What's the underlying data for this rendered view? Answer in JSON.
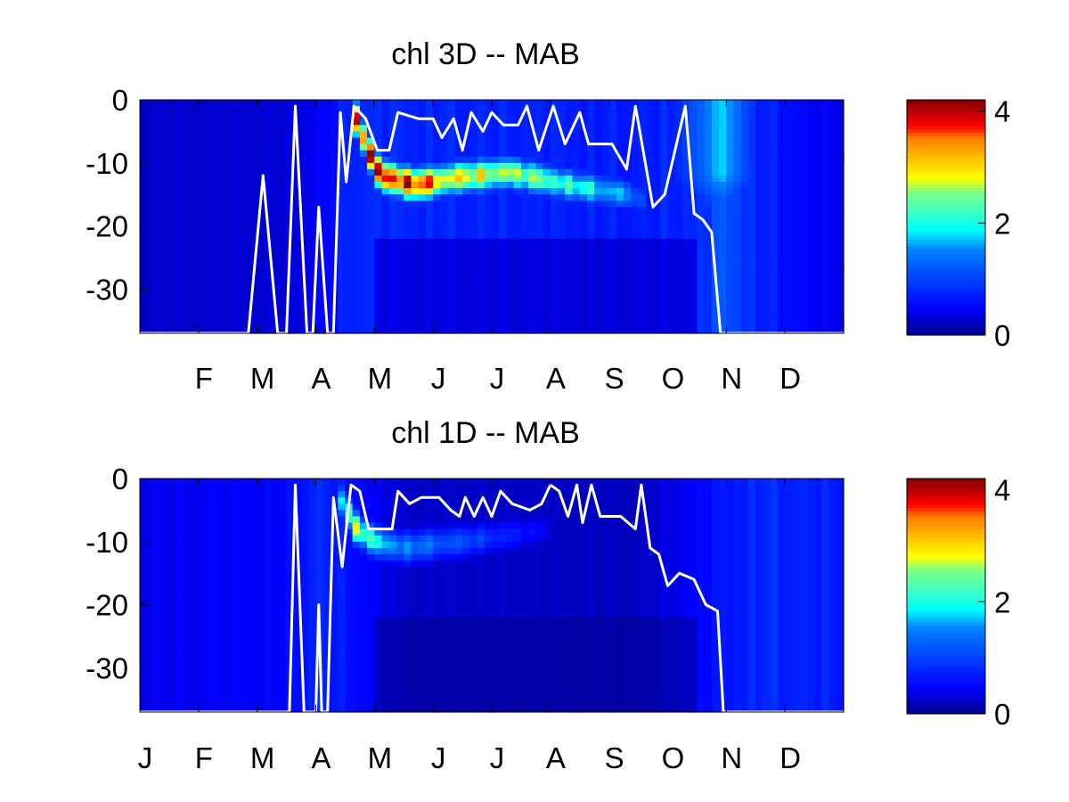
{
  "colormap": "jet",
  "colors": {
    "background": "#ffffff",
    "frame": "#000000",
    "mld_line": "#ffffff",
    "colormap_stops": [
      "#00008f",
      "#0000ff",
      "#0080ff",
      "#00ffff",
      "#80ff80",
      "#ffff00",
      "#ff8000",
      "#ff0000",
      "#800000"
    ]
  },
  "chart_data": [
    {
      "type": "heatmap",
      "title": "chl 3D   -- MAB",
      "xlabel": "",
      "ylabel": "",
      "x_unit_months": [
        1,
        13
      ],
      "x_tick_labels": [
        {
          "label": "F",
          "month": 2
        },
        {
          "label": "M",
          "month": 3
        },
        {
          "label": "A",
          "month": 4
        },
        {
          "label": "M",
          "month": 5
        },
        {
          "label": "J",
          "month": 6
        },
        {
          "label": "J",
          "month": 7
        },
        {
          "label": "A",
          "month": 8
        },
        {
          "label": "S",
          "month": 9
        },
        {
          "label": "O",
          "month": 10
        },
        {
          "label": "N",
          "month": 11
        },
        {
          "label": "D",
          "month": 12
        }
      ],
      "ylim": [
        -37,
        0
      ],
      "y_ticks": [
        0,
        -10,
        -20,
        -30
      ],
      "clim": [
        0,
        4.2
      ],
      "colorbar_ticks": [
        0,
        2,
        4
      ],
      "grid": false,
      "features": {
        "background_chl": [
          {
            "month": 1.0,
            "value": 0.25
          },
          {
            "month": 3.5,
            "value": 0.3
          },
          {
            "month": 4.2,
            "value": 0.5
          },
          {
            "month": 4.6,
            "value": 0.8
          },
          {
            "month": 9.5,
            "value": 0.7
          },
          {
            "month": 10.5,
            "value": 0.8
          },
          {
            "month": 11.0,
            "value": 1.2
          },
          {
            "month": 11.5,
            "value": 0.8
          },
          {
            "month": 12.3,
            "value": 0.5
          },
          {
            "month": 13.0,
            "value": 0.4
          }
        ],
        "subsurface_max": [
          {
            "month": 4.6,
            "depth": -1,
            "value": 3.8
          },
          {
            "month": 4.85,
            "depth": -7,
            "value": 4.0
          },
          {
            "month": 5.1,
            "depth": -12,
            "value": 4.1
          },
          {
            "month": 5.7,
            "depth": -13.5,
            "value": 3.8
          },
          {
            "month": 6.3,
            "depth": -12.5,
            "value": 3.0
          },
          {
            "month": 7.3,
            "depth": -11.5,
            "value": 2.7
          },
          {
            "month": 8.3,
            "depth": -13.5,
            "value": 2.2
          },
          {
            "month": 9.3,
            "depth": -15,
            "value": 1.6
          },
          {
            "month": 9.6,
            "depth": -16,
            "value": 0.9
          }
        ],
        "autumn_column": [
          {
            "month": 10.0,
            "value": 0.6
          },
          {
            "month": 10.6,
            "value": 1.3
          },
          {
            "month": 10.9,
            "value": 1.8
          },
          {
            "month": 11.1,
            "value": 1.5
          },
          {
            "month": 11.5,
            "value": 0.7
          }
        ]
      },
      "mixed_layer_depth": [
        {
          "month": 1.0,
          "depth": -37
        },
        {
          "month": 2.85,
          "depth": -37
        },
        {
          "month": 3.1,
          "depth": -12
        },
        {
          "month": 3.35,
          "depth": -37
        },
        {
          "month": 3.5,
          "depth": -37
        },
        {
          "month": 3.65,
          "depth": -1
        },
        {
          "month": 3.85,
          "depth": -37
        },
        {
          "month": 3.95,
          "depth": -37
        },
        {
          "month": 4.05,
          "depth": -17
        },
        {
          "month": 4.2,
          "depth": -37
        },
        {
          "month": 4.3,
          "depth": -37
        },
        {
          "month": 4.42,
          "depth": -2
        },
        {
          "month": 4.52,
          "depth": -13
        },
        {
          "month": 4.65,
          "depth": -1
        },
        {
          "month": 4.85,
          "depth": -3
        },
        {
          "month": 5.05,
          "depth": -8
        },
        {
          "month": 5.25,
          "depth": -8
        },
        {
          "month": 5.4,
          "depth": -2
        },
        {
          "month": 5.75,
          "depth": -3
        },
        {
          "month": 6.0,
          "depth": -3
        },
        {
          "month": 6.15,
          "depth": -6
        },
        {
          "month": 6.35,
          "depth": -3
        },
        {
          "month": 6.5,
          "depth": -8
        },
        {
          "month": 6.65,
          "depth": -2
        },
        {
          "month": 6.85,
          "depth": -5
        },
        {
          "month": 7.0,
          "depth": -2
        },
        {
          "month": 7.2,
          "depth": -4
        },
        {
          "month": 7.45,
          "depth": -4
        },
        {
          "month": 7.6,
          "depth": -1
        },
        {
          "month": 7.8,
          "depth": -8
        },
        {
          "month": 8.05,
          "depth": -1
        },
        {
          "month": 8.25,
          "depth": -7
        },
        {
          "month": 8.5,
          "depth": -2
        },
        {
          "month": 8.65,
          "depth": -7
        },
        {
          "month": 9.05,
          "depth": -7
        },
        {
          "month": 9.3,
          "depth": -11
        },
        {
          "month": 9.45,
          "depth": -1
        },
        {
          "month": 9.75,
          "depth": -17
        },
        {
          "month": 9.95,
          "depth": -15
        },
        {
          "month": 10.3,
          "depth": -1
        },
        {
          "month": 10.45,
          "depth": -18
        },
        {
          "month": 10.6,
          "depth": -19
        },
        {
          "month": 10.75,
          "depth": -21
        },
        {
          "month": 10.9,
          "depth": -37
        },
        {
          "month": 13.0,
          "depth": -37
        }
      ]
    },
    {
      "type": "heatmap",
      "title": "chl 1D   -- MAB",
      "xlabel": "",
      "ylabel": "",
      "x_unit_months": [
        1,
        13
      ],
      "x_tick_labels": [
        {
          "label": "J",
          "month": 1
        },
        {
          "label": "F",
          "month": 2
        },
        {
          "label": "M",
          "month": 3
        },
        {
          "label": "A",
          "month": 4
        },
        {
          "label": "M",
          "month": 5
        },
        {
          "label": "J",
          "month": 6
        },
        {
          "label": "J",
          "month": 7
        },
        {
          "label": "A",
          "month": 8
        },
        {
          "label": "S",
          "month": 9
        },
        {
          "label": "O",
          "month": 10
        },
        {
          "label": "N",
          "month": 11
        },
        {
          "label": "D",
          "month": 12
        }
      ],
      "ylim": [
        -37,
        0
      ],
      "y_ticks": [
        0,
        -10,
        -20,
        -30
      ],
      "clim": [
        0,
        4.2
      ],
      "colorbar_ticks": [
        0,
        2,
        4
      ],
      "grid": false,
      "features": {
        "background_chl": [
          {
            "month": 1.0,
            "value": 0.4
          },
          {
            "month": 3.5,
            "value": 0.5
          },
          {
            "month": 4.0,
            "value": 0.8
          },
          {
            "month": 4.6,
            "value": 0.6
          },
          {
            "month": 5.5,
            "value": 0.25
          },
          {
            "month": 9.5,
            "value": 0.2
          },
          {
            "month": 10.5,
            "value": 0.5
          },
          {
            "month": 11.5,
            "value": 0.8
          },
          {
            "month": 13.0,
            "value": 0.7
          }
        ],
        "subsurface_max": [
          {
            "month": 4.4,
            "depth": -3,
            "value": 1.8
          },
          {
            "month": 4.7,
            "depth": -8,
            "value": 2.8
          },
          {
            "month": 5.0,
            "depth": -10,
            "value": 2.0
          },
          {
            "month": 5.5,
            "depth": -11,
            "value": 1.5
          },
          {
            "month": 6.5,
            "depth": -10,
            "value": 1.1
          },
          {
            "month": 7.3,
            "depth": -9,
            "value": 0.7
          },
          {
            "month": 8.0,
            "depth": -8,
            "value": 0.4
          }
        ],
        "autumn_column": []
      },
      "mixed_layer_depth": [
        {
          "month": 1.0,
          "depth": -37
        },
        {
          "month": 3.55,
          "depth": -37
        },
        {
          "month": 3.65,
          "depth": -1
        },
        {
          "month": 3.8,
          "depth": -37
        },
        {
          "month": 4.0,
          "depth": -37
        },
        {
          "month": 4.05,
          "depth": -20
        },
        {
          "month": 4.1,
          "depth": -37
        },
        {
          "month": 4.2,
          "depth": -37
        },
        {
          "month": 4.3,
          "depth": -3
        },
        {
          "month": 4.45,
          "depth": -14
        },
        {
          "month": 4.6,
          "depth": -1
        },
        {
          "month": 4.75,
          "depth": -2
        },
        {
          "month": 4.9,
          "depth": -8
        },
        {
          "month": 5.3,
          "depth": -8
        },
        {
          "month": 5.4,
          "depth": -2
        },
        {
          "month": 5.6,
          "depth": -4
        },
        {
          "month": 5.8,
          "depth": -3
        },
        {
          "month": 6.1,
          "depth": -3
        },
        {
          "month": 6.3,
          "depth": -5
        },
        {
          "month": 6.45,
          "depth": -6
        },
        {
          "month": 6.55,
          "depth": -3
        },
        {
          "month": 6.7,
          "depth": -6
        },
        {
          "month": 6.85,
          "depth": -3
        },
        {
          "month": 7.0,
          "depth": -6
        },
        {
          "month": 7.15,
          "depth": -2
        },
        {
          "month": 7.35,
          "depth": -4
        },
        {
          "month": 7.65,
          "depth": -5
        },
        {
          "month": 7.85,
          "depth": -4
        },
        {
          "month": 8.0,
          "depth": -1
        },
        {
          "month": 8.15,
          "depth": -2
        },
        {
          "month": 8.3,
          "depth": -6
        },
        {
          "month": 8.45,
          "depth": -1
        },
        {
          "month": 8.55,
          "depth": -7
        },
        {
          "month": 8.7,
          "depth": -1
        },
        {
          "month": 8.85,
          "depth": -6
        },
        {
          "month": 9.2,
          "depth": -6
        },
        {
          "month": 9.45,
          "depth": -8
        },
        {
          "month": 9.55,
          "depth": -1
        },
        {
          "month": 9.7,
          "depth": -11
        },
        {
          "month": 9.85,
          "depth": -12
        },
        {
          "month": 10.0,
          "depth": -17
        },
        {
          "month": 10.2,
          "depth": -15
        },
        {
          "month": 10.45,
          "depth": -16
        },
        {
          "month": 10.65,
          "depth": -20
        },
        {
          "month": 10.85,
          "depth": -21
        },
        {
          "month": 10.95,
          "depth": -37
        },
        {
          "month": 13.0,
          "depth": -37
        }
      ]
    }
  ]
}
